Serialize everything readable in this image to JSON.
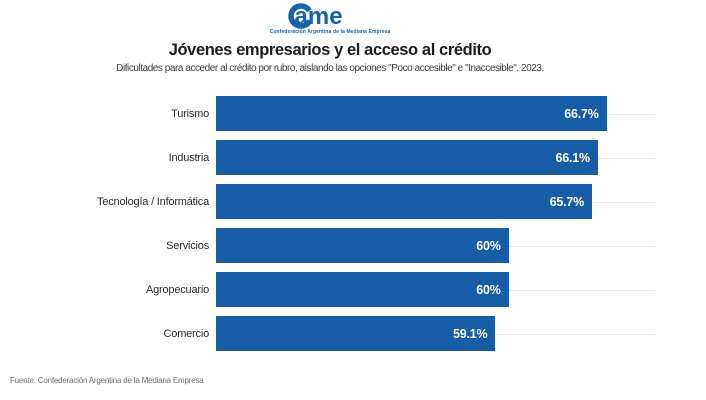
{
  "brand": {
    "logo_text": "ame",
    "logo_full_name": "Came",
    "tagline": "Confederación Argentina de la Mediana Empresa",
    "logo_color": "#1563AD"
  },
  "header": {
    "title": "Jóvenes empresarios y el acceso al crédito",
    "subtitle": "Dificultades para acceder al crédito por rubro, aislando las opciones \"Poco accesible\" e \"Inaccesible\". 2023."
  },
  "footer": {
    "source": "Fuente: Confederación Argentina de la Mediana Empresa"
  },
  "chart_data": {
    "type": "bar",
    "orientation": "horizontal",
    "title": "Jóvenes empresarios y el acceso al crédito",
    "subtitle": "Dificultades para acceder al crédito por rubro, aislando las opciones \"Poco accesible\" e \"Inaccesible\". 2023.",
    "categories": [
      "Turismo",
      "Industria",
      "Tecnología / Informática",
      "Servicios",
      "Agropecuario",
      "Comercio"
    ],
    "values": [
      66.7,
      66.1,
      65.7,
      60,
      60,
      59.1
    ],
    "value_labels": [
      "66.7%",
      "66.1%",
      "65.7%",
      "60%",
      "60%",
      "59.1%"
    ],
    "xlabel": "",
    "ylabel": "",
    "xlim": [
      40,
      70
    ],
    "grid": "horizontal-row-lines",
    "legend": "none",
    "bar_color": "#175DA6",
    "value_label_color": "#FFFFFF",
    "gridline_color": "#E9E9E9"
  }
}
